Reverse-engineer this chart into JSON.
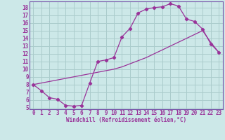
{
  "bg_color": "#cce8e8",
  "grid_color": "#aacccc",
  "line_color": "#993399",
  "spine_color": "#7755aa",
  "xlim": [
    -0.5,
    23.5
  ],
  "ylim": [
    4.8,
    18.8
  ],
  "xticks": [
    0,
    1,
    2,
    3,
    4,
    5,
    6,
    7,
    8,
    9,
    10,
    11,
    12,
    13,
    14,
    15,
    16,
    17,
    18,
    19,
    20,
    21,
    22,
    23
  ],
  "yticks": [
    5,
    6,
    7,
    8,
    9,
    10,
    11,
    12,
    13,
    14,
    15,
    16,
    17,
    18
  ],
  "curve1_x": [
    0,
    1,
    2,
    3,
    4,
    5,
    6,
    7,
    8,
    9,
    10,
    11,
    12,
    13,
    14,
    15,
    16,
    17,
    18,
    19,
    20,
    21,
    22,
    23
  ],
  "curve1_y": [
    8.0,
    7.2,
    6.3,
    6.1,
    5.3,
    5.2,
    5.3,
    8.2,
    11.0,
    11.2,
    11.5,
    14.2,
    15.3,
    17.3,
    17.8,
    18.0,
    18.1,
    18.5,
    18.2,
    16.5,
    16.2,
    15.2,
    13.3,
    12.2
  ],
  "curve2_x": [
    0,
    1,
    2,
    3,
    4,
    5,
    6,
    7,
    8,
    9,
    10,
    11,
    12,
    13,
    14,
    15,
    16,
    17,
    18,
    19,
    20,
    21,
    22,
    23
  ],
  "curve2_y": [
    8.0,
    8.2,
    8.4,
    8.6,
    8.8,
    9.0,
    9.2,
    9.4,
    9.6,
    9.8,
    10.0,
    10.3,
    10.7,
    11.1,
    11.5,
    12.0,
    12.5,
    13.0,
    13.5,
    14.0,
    14.5,
    15.0,
    13.5,
    12.2
  ],
  "xlabel": "Windchill (Refroidissement éolien,°C)",
  "tick_fontsize": 5.5,
  "label_fontsize": 5.5
}
